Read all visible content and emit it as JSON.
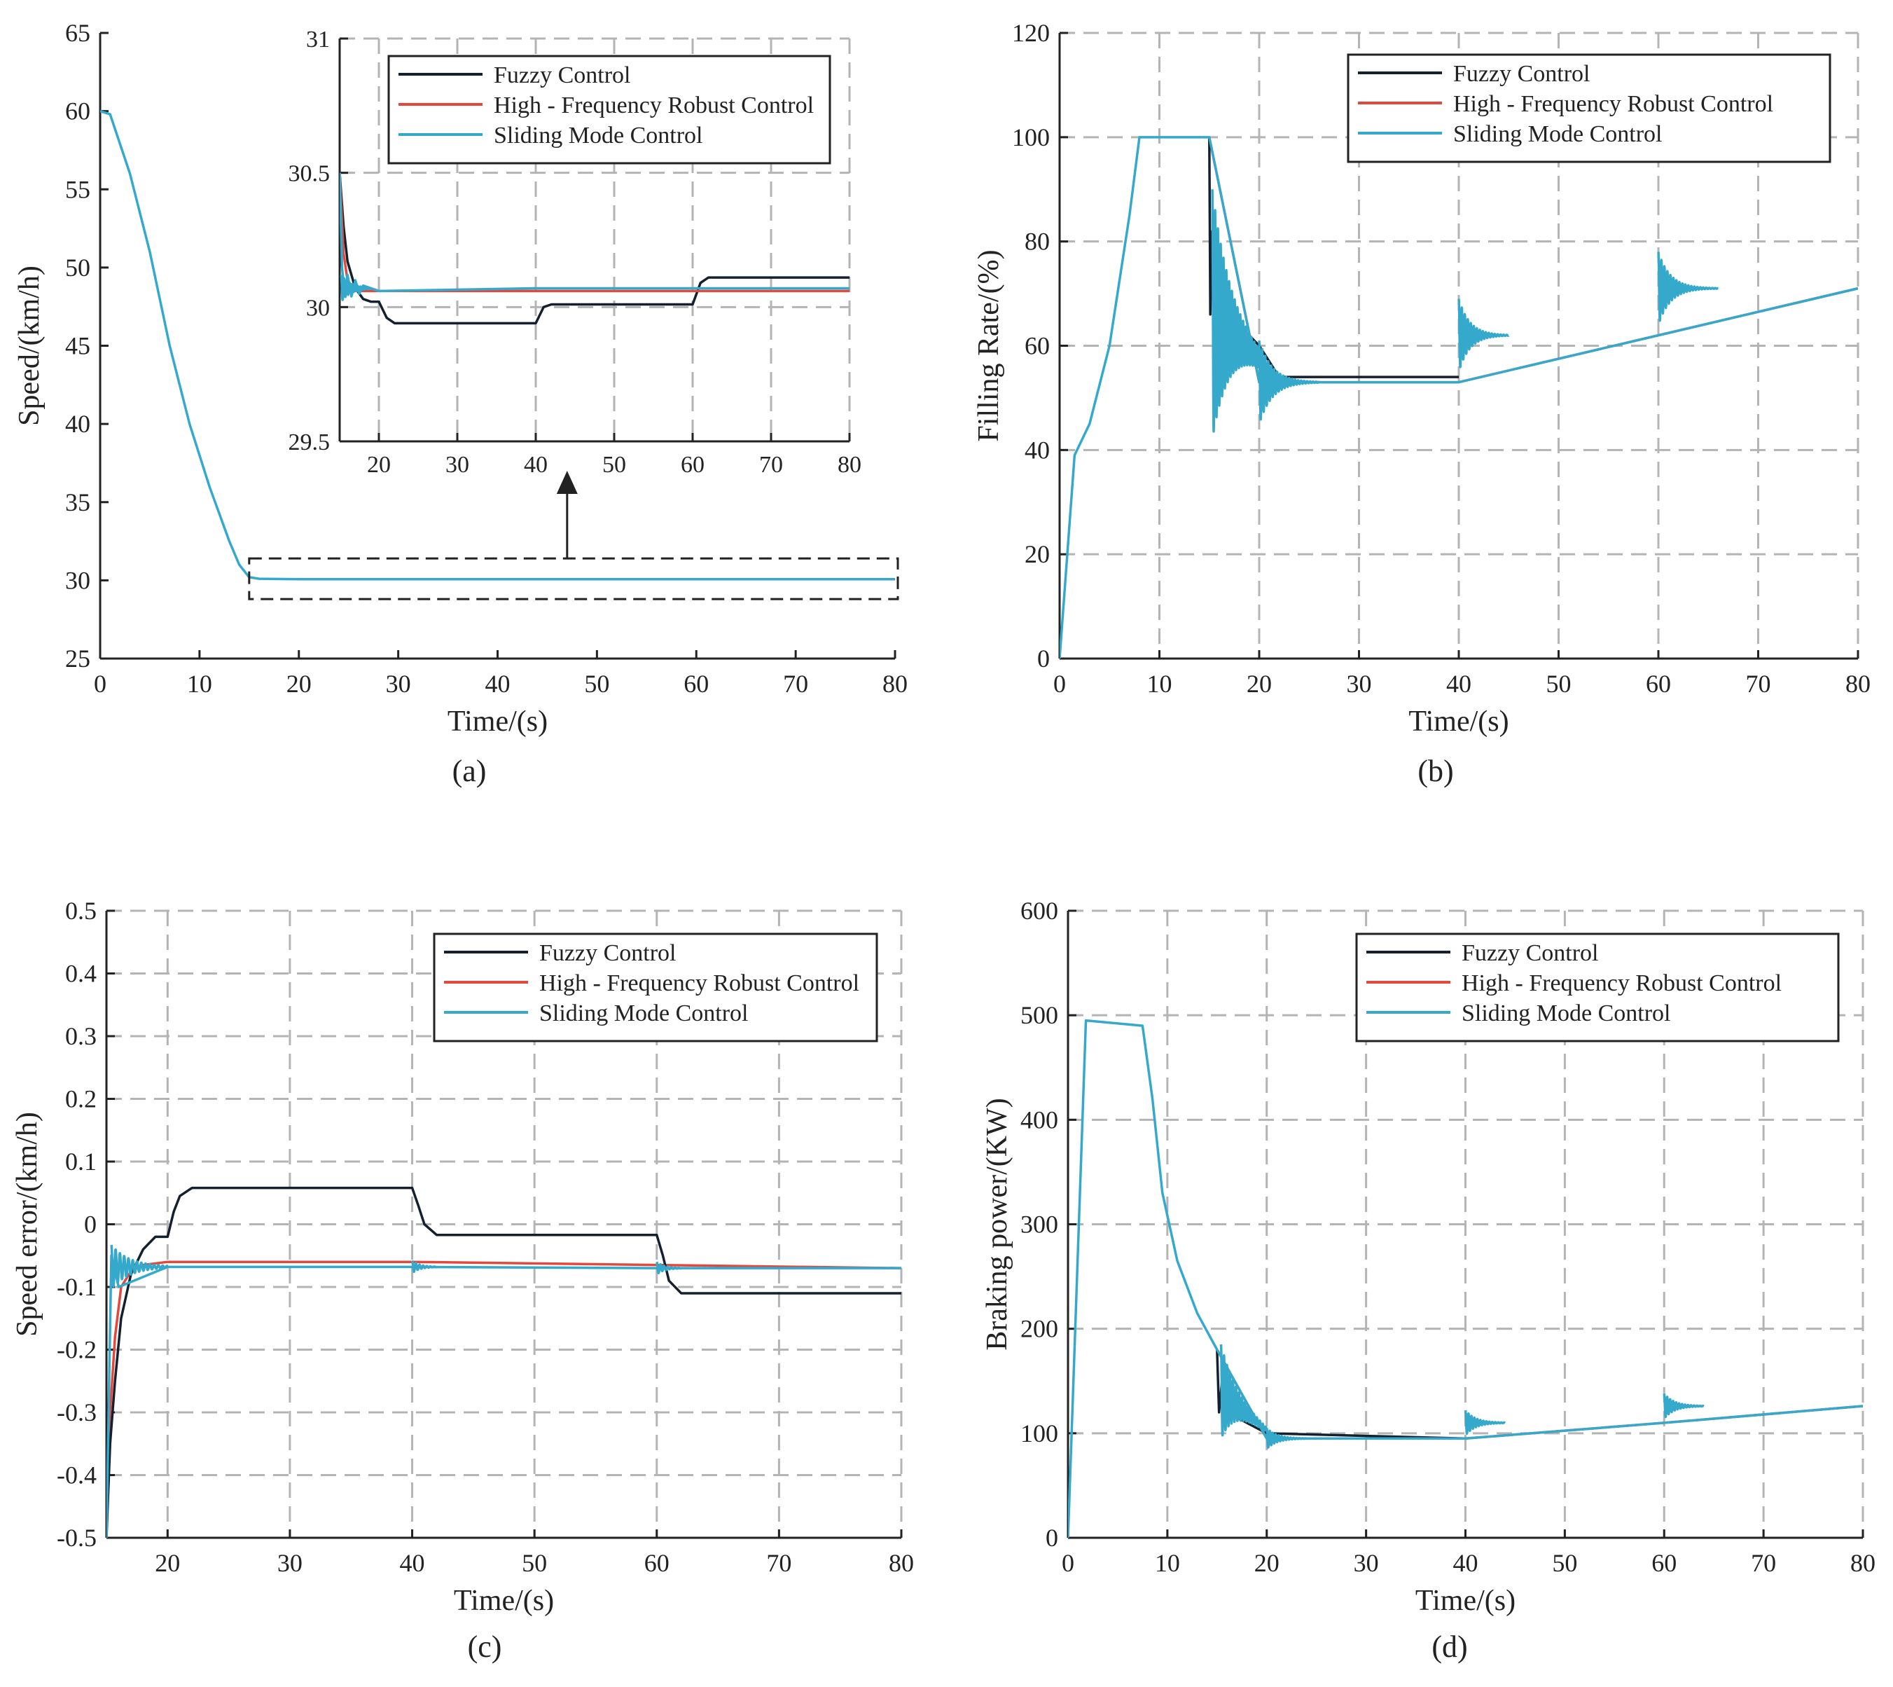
{
  "colors": {
    "Fuzzy Control": "#15202e",
    "High - Frequency Robust Control": "#e2483b",
    "Sliding Mode Control": "#35a9cc",
    "grid": "#b4b4b4",
    "axis": "#222222"
  },
  "chart_data": [
    {
      "id": "a",
      "type": "line",
      "caption": "(a)",
      "xlabel": "Time/(s)",
      "ylabel": "Speed/(km/h)",
      "xlim": [
        0,
        80
      ],
      "ylim": [
        25,
        65
      ],
      "xticks": [
        0,
        10,
        20,
        30,
        40,
        50,
        60,
        70,
        80
      ],
      "yticks": [
        25,
        30,
        35,
        40,
        45,
        50,
        55,
        60,
        65
      ],
      "grid": false,
      "series": [
        {
          "name": "Sliding Mode Control",
          "x": [
            0,
            1,
            3,
            5,
            7,
            9,
            11,
            13,
            14,
            15,
            16,
            20,
            40,
            60,
            80
          ],
          "y": [
            60,
            59.8,
            56,
            51,
            45,
            40,
            36,
            32.5,
            31,
            30.2,
            30.1,
            30.07,
            30.07,
            30.07,
            30.07
          ]
        }
      ],
      "inset": {
        "xlim": [
          15,
          80
        ],
        "ylim": [
          29.5,
          31
        ],
        "xticks": [
          20,
          30,
          40,
          50,
          60,
          70,
          80
        ],
        "yticks": [
          29.5,
          30,
          30.5,
          31
        ],
        "grid": true,
        "legend": {
          "position": "top-right",
          "entries": [
            "Fuzzy Control",
            "High - Frequency Robust Control",
            "Sliding Mode Control"
          ]
        },
        "series": [
          {
            "name": "Fuzzy Control",
            "x": [
              15,
              15.5,
              16,
              17,
              18,
              19,
              20,
              21,
              22,
              40,
              40.5,
              41,
              42,
              60,
              60.5,
              61,
              62,
              80
            ],
            "y": [
              30.5,
              30.3,
              30.17,
              30.07,
              30.03,
              30.02,
              30.02,
              29.96,
              29.94,
              29.94,
              29.97,
              30.0,
              30.01,
              30.01,
              30.05,
              30.09,
              30.11,
              30.11
            ]
          },
          {
            "name": "High - Frequency Robust Control",
            "x": [
              15,
              15.5,
              16,
              17,
              40,
              80
            ],
            "y": [
              30.5,
              30.2,
              30.1,
              30.06,
              30.06,
              30.06
            ]
          },
          {
            "name": "Sliding Mode Control",
            "x": [
              15,
              15.3,
              15.6,
              16,
              16.5,
              17,
              17.5,
              18,
              19,
              20,
              40,
              60,
              80
            ],
            "y": [
              30.5,
              30.15,
              30.05,
              30.12,
              30.04,
              30.1,
              30.05,
              30.08,
              30.07,
              30.06,
              30.07,
              30.07,
              30.07
            ]
          }
        ]
      }
    },
    {
      "id": "b",
      "type": "line",
      "caption": "(b)",
      "xlabel": "Time/(s)",
      "ylabel": "Filling Rate/(%)",
      "xlim": [
        0,
        80
      ],
      "ylim": [
        0,
        120
      ],
      "xticks": [
        0,
        10,
        20,
        30,
        40,
        50,
        60,
        70,
        80
      ],
      "yticks": [
        0,
        20,
        40,
        60,
        80,
        100,
        120
      ],
      "grid": true,
      "legend": {
        "position": "top-right",
        "entries": [
          "Fuzzy Control",
          "High - Frequency Robust Control",
          "Sliding Mode Control"
        ]
      },
      "series": [
        {
          "name": "Fuzzy Control",
          "x": [
            15,
            15.1,
            15.3,
            15.5,
            16,
            17,
            18,
            19,
            20,
            22,
            40
          ],
          "y": [
            100,
            66,
            82,
            70,
            65,
            64,
            63,
            62,
            60,
            54,
            54
          ]
        },
        {
          "name": "High - Frequency Robust Control",
          "x": [
            15,
            20,
            40,
            60,
            80
          ],
          "y": [
            100,
            53,
            53,
            62,
            71
          ]
        },
        {
          "name": "Sliding Mode Control",
          "x": [
            0,
            1.5,
            3,
            5,
            7,
            8,
            15,
            20,
            40,
            60,
            80
          ],
          "y": [
            0,
            39,
            45,
            60,
            85,
            100,
            100,
            53,
            53,
            62,
            71
          ]
        }
      ]
    },
    {
      "id": "c",
      "type": "line",
      "caption": "(c)",
      "xlabel": "Time/(s)",
      "ylabel": "Speed error/(km/h)",
      "xlim": [
        15,
        80
      ],
      "ylim": [
        -0.5,
        0.5
      ],
      "xticks": [
        20,
        30,
        40,
        50,
        60,
        70,
        80
      ],
      "yticks": [
        -0.5,
        -0.4,
        -0.3,
        -0.2,
        -0.1,
        0,
        0.1,
        0.2,
        0.3,
        0.4,
        0.5
      ],
      "grid": true,
      "legend": {
        "position": "top-right",
        "entries": [
          "Fuzzy Control",
          "High - Frequency Robust Control",
          "Sliding Mode Control"
        ]
      },
      "series": [
        {
          "name": "Fuzzy Control",
          "x": [
            15,
            15.3,
            15.7,
            16.2,
            17,
            18,
            19,
            20,
            20.5,
            21,
            22,
            40,
            40.5,
            41,
            42,
            60,
            60.5,
            61,
            62,
            80
          ],
          "y": [
            -0.5,
            -0.35,
            -0.25,
            -0.15,
            -0.08,
            -0.04,
            -0.02,
            -0.02,
            0.02,
            0.045,
            0.058,
            0.058,
            0.03,
            0.0,
            -0.017,
            -0.017,
            -0.05,
            -0.09,
            -0.11,
            -0.11
          ]
        },
        {
          "name": "High - Frequency Robust Control",
          "x": [
            15,
            15.3,
            15.7,
            16.2,
            17,
            18,
            20,
            40,
            60,
            80
          ],
          "y": [
            -0.5,
            -0.3,
            -0.18,
            -0.1,
            -0.075,
            -0.065,
            -0.06,
            -0.06,
            -0.065,
            -0.07
          ]
        },
        {
          "name": "Sliding Mode Control",
          "x": [
            15,
            15.4,
            16,
            20,
            40,
            60,
            80
          ],
          "y": [
            -0.5,
            -0.05,
            -0.1,
            -0.068,
            -0.068,
            -0.07,
            -0.07
          ]
        }
      ]
    },
    {
      "id": "d",
      "type": "line",
      "caption": "(d)",
      "xlabel": "Time/(s)",
      "ylabel": "Braking power/(KW)",
      "xlim": [
        0,
        80
      ],
      "ylim": [
        0,
        600
      ],
      "xticks": [
        0,
        10,
        20,
        30,
        40,
        50,
        60,
        70,
        80
      ],
      "yticks": [
        0,
        100,
        200,
        300,
        400,
        500,
        600
      ],
      "grid": true,
      "legend": {
        "position": "top-right",
        "entries": [
          "Fuzzy Control",
          "High - Frequency Robust Control",
          "Sliding Mode Control"
        ]
      },
      "series": [
        {
          "name": "Fuzzy Control",
          "x": [
            15,
            15.2,
            15.5,
            16,
            17,
            18,
            20,
            40
          ],
          "y": [
            180,
            120,
            150,
            130,
            115,
            110,
            100,
            95
          ]
        },
        {
          "name": "High - Frequency Robust Control",
          "x": [
            15,
            20,
            40,
            60,
            80
          ],
          "y": [
            180,
            95,
            95,
            110,
            126
          ]
        },
        {
          "name": "Sliding Mode Control",
          "x": [
            0,
            1.8,
            7.5,
            8.5,
            9.5,
            11,
            13,
            15,
            20,
            40,
            60,
            80
          ],
          "y": [
            0,
            495,
            490,
            420,
            330,
            265,
            215,
            180,
            95,
            95,
            110,
            126
          ]
        }
      ]
    }
  ]
}
